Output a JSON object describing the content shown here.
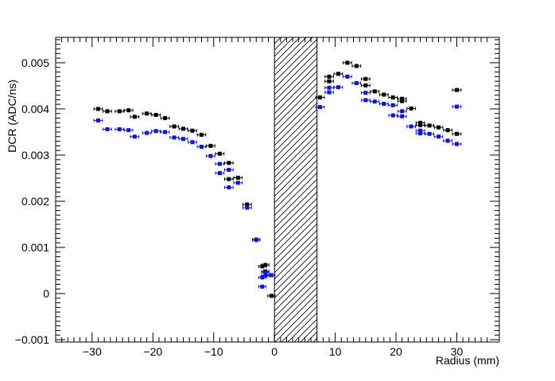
{
  "chart_data": {
    "type": "scatter",
    "title": "",
    "xlabel": "Radius (mm)",
    "ylabel": "DCR (ADC/ns)",
    "xlim": [
      -36,
      37
    ],
    "ylim": [
      -0.00105,
      0.00555
    ],
    "x_ticks": [
      -30,
      -20,
      -10,
      0,
      10,
      20,
      30
    ],
    "x_tick_labels": [
      "−30",
      "−20",
      "−10",
      "0",
      "10",
      "20",
      "30"
    ],
    "y_ticks": [
      -0.001,
      0,
      0.001,
      0.002,
      0.003,
      0.004,
      0.005
    ],
    "y_tick_labels": [
      "−0.001",
      "0",
      "0.001",
      "0.002",
      "0.003",
      "0.004",
      "0.005"
    ],
    "grid": false,
    "legend": "none",
    "excluded_region": {
      "x_range": [
        0,
        7
      ],
      "style": "hatched"
    },
    "series": [
      {
        "color": "#000000",
        "marker": "square",
        "points": [
          {
            "x": -29.0,
            "y": 0.004,
            "xerr": 0.7
          },
          {
            "x": -27.5,
            "y": 0.00395,
            "xerr": 0.7
          },
          {
            "x": -25.5,
            "y": 0.00395,
            "xerr": 0.7
          },
          {
            "x": -24.0,
            "y": 0.00397,
            "xerr": 0.7
          },
          {
            "x": -23.0,
            "y": 0.00383,
            "xerr": 0.7
          },
          {
            "x": -21.0,
            "y": 0.0039,
            "xerr": 0.7
          },
          {
            "x": -19.5,
            "y": 0.00387,
            "xerr": 0.7
          },
          {
            "x": -18.0,
            "y": 0.0038,
            "xerr": 0.7
          },
          {
            "x": -16.5,
            "y": 0.00362,
            "xerr": 0.7
          },
          {
            "x": -15.0,
            "y": 0.00357,
            "xerr": 0.7
          },
          {
            "x": -13.5,
            "y": 0.00353,
            "xerr": 0.7
          },
          {
            "x": -12.0,
            "y": 0.00344,
            "xerr": 0.7
          },
          {
            "x": -10.5,
            "y": 0.0032,
            "xerr": 0.7
          },
          {
            "x": -9.0,
            "y": 0.00303,
            "xerr": 0.7
          },
          {
            "x": -7.5,
            "y": 0.00283,
            "xerr": 0.7
          },
          {
            "x": -7.5,
            "y": 0.00248,
            "xerr": 0.7
          },
          {
            "x": -6.0,
            "y": 0.00251,
            "xerr": 0.7
          },
          {
            "x": -4.5,
            "y": 0.00193,
            "xerr": 0.7
          },
          {
            "x": -3.0,
            "y": 0.00117,
            "xerr": 0.6
          },
          {
            "x": -2.0,
            "y": 0.00059,
            "xerr": 0.6
          },
          {
            "x": -1.5,
            "y": 0.00062,
            "xerr": 0.6
          },
          {
            "x": -1.5,
            "y": 0.00048,
            "xerr": 0.6
          },
          {
            "x": -0.5,
            "y": -5e-05,
            "xerr": 0.6
          },
          {
            "x": 7.5,
            "y": 0.00425,
            "xerr": 0.7
          },
          {
            "x": 9.0,
            "y": 0.0047,
            "xerr": 0.7
          },
          {
            "x": 9.0,
            "y": 0.0046,
            "xerr": 0.7
          },
          {
            "x": 10.5,
            "y": 0.00476,
            "xerr": 0.7
          },
          {
            "x": 12.0,
            "y": 0.005,
            "xerr": 0.7
          },
          {
            "x": 13.5,
            "y": 0.00493,
            "xerr": 0.7
          },
          {
            "x": 15.0,
            "y": 0.00465,
            "xerr": 0.7
          },
          {
            "x": 15.0,
            "y": 0.00451,
            "xerr": 0.7
          },
          {
            "x": 16.5,
            "y": 0.00438,
            "xerr": 0.7
          },
          {
            "x": 18.0,
            "y": 0.00431,
            "xerr": 0.7
          },
          {
            "x": 19.5,
            "y": 0.00425,
            "xerr": 0.7
          },
          {
            "x": 21.0,
            "y": 0.00422,
            "xerr": 0.7
          },
          {
            "x": 21.0,
            "y": 0.00417,
            "xerr": 0.7
          },
          {
            "x": 22.5,
            "y": 0.00401,
            "xerr": 0.7
          },
          {
            "x": 24.0,
            "y": 0.0037,
            "xerr": 0.7
          },
          {
            "x": 24.0,
            "y": 0.00365,
            "xerr": 0.7
          },
          {
            "x": 25.5,
            "y": 0.00364,
            "xerr": 0.7
          },
          {
            "x": 27.0,
            "y": 0.0036,
            "xerr": 0.7
          },
          {
            "x": 28.5,
            "y": 0.00354,
            "xerr": 0.7
          },
          {
            "x": 30.0,
            "y": 0.00346,
            "xerr": 0.7
          },
          {
            "x": 30.0,
            "y": 0.00441,
            "xerr": 0.7
          }
        ]
      },
      {
        "color": "#0a14e8",
        "marker": "square",
        "points": [
          {
            "x": -29.0,
            "y": 0.00375,
            "xerr": 0.7
          },
          {
            "x": -27.5,
            "y": 0.00356,
            "xerr": 0.7
          },
          {
            "x": -25.5,
            "y": 0.00356,
            "xerr": 0.7
          },
          {
            "x": -24.0,
            "y": 0.00354,
            "xerr": 0.7
          },
          {
            "x": -23.0,
            "y": 0.0034,
            "xerr": 0.7
          },
          {
            "x": -21.0,
            "y": 0.00348,
            "xerr": 0.7
          },
          {
            "x": -19.5,
            "y": 0.00352,
            "xerr": 0.7
          },
          {
            "x": -18.0,
            "y": 0.0035,
            "xerr": 0.7
          },
          {
            "x": -16.5,
            "y": 0.00338,
            "xerr": 0.7
          },
          {
            "x": -15.0,
            "y": 0.00335,
            "xerr": 0.7
          },
          {
            "x": -13.5,
            "y": 0.00328,
            "xerr": 0.7
          },
          {
            "x": -12.0,
            "y": 0.00318,
            "xerr": 0.7
          },
          {
            "x": -10.5,
            "y": 0.00298,
            "xerr": 0.7
          },
          {
            "x": -9.0,
            "y": 0.00281,
            "xerr": 0.7
          },
          {
            "x": -9.0,
            "y": 0.00261,
            "xerr": 0.7
          },
          {
            "x": -7.5,
            "y": 0.00268,
            "xerr": 0.7
          },
          {
            "x": -7.5,
            "y": 0.0023,
            "xerr": 0.7
          },
          {
            "x": -6.0,
            "y": 0.0024,
            "xerr": 0.7
          },
          {
            "x": -4.5,
            "y": 0.00186,
            "xerr": 0.7
          },
          {
            "x": -3.0,
            "y": 0.00116,
            "xerr": 0.6
          },
          {
            "x": -2.0,
            "y": 0.00035,
            "xerr": 0.6
          },
          {
            "x": -1.5,
            "y": 0.00046,
            "xerr": 0.6
          },
          {
            "x": -1.5,
            "y": 0.00039,
            "xerr": 0.6
          },
          {
            "x": -0.5,
            "y": 0.0004,
            "xerr": 0.6
          },
          {
            "x": -2.0,
            "y": 0.00015,
            "xerr": 0.6
          },
          {
            "x": 7.5,
            "y": 0.00404,
            "xerr": 0.7
          },
          {
            "x": 9.0,
            "y": 0.00436,
            "xerr": 0.7
          },
          {
            "x": 9.0,
            "y": 0.00446,
            "xerr": 0.7
          },
          {
            "x": 10.5,
            "y": 0.00447,
            "xerr": 0.7
          },
          {
            "x": 12.0,
            "y": 0.0047,
            "xerr": 0.7
          },
          {
            "x": 13.5,
            "y": 0.00456,
            "xerr": 0.7
          },
          {
            "x": 15.0,
            "y": 0.00435,
            "xerr": 0.7
          },
          {
            "x": 15.0,
            "y": 0.00419,
            "xerr": 0.7
          },
          {
            "x": 16.5,
            "y": 0.00416,
            "xerr": 0.7
          },
          {
            "x": 18.0,
            "y": 0.00411,
            "xerr": 0.7
          },
          {
            "x": 19.5,
            "y": 0.00386,
            "xerr": 0.7
          },
          {
            "x": 19.5,
            "y": 0.00408,
            "xerr": 0.7
          },
          {
            "x": 21.0,
            "y": 0.00395,
            "xerr": 0.7
          },
          {
            "x": 21.0,
            "y": 0.00384,
            "xerr": 0.7
          },
          {
            "x": 22.5,
            "y": 0.00362,
            "xerr": 0.7
          },
          {
            "x": 24.0,
            "y": 0.00353,
            "xerr": 0.7
          },
          {
            "x": 24.0,
            "y": 0.00347,
            "xerr": 0.7
          },
          {
            "x": 25.5,
            "y": 0.00346,
            "xerr": 0.7
          },
          {
            "x": 27.0,
            "y": 0.0034,
            "xerr": 0.7
          },
          {
            "x": 28.5,
            "y": 0.00331,
            "xerr": 0.7
          },
          {
            "x": 30.0,
            "y": 0.00324,
            "xerr": 0.7
          },
          {
            "x": 30.0,
            "y": 0.00405,
            "xerr": 0.7
          }
        ]
      }
    ]
  }
}
